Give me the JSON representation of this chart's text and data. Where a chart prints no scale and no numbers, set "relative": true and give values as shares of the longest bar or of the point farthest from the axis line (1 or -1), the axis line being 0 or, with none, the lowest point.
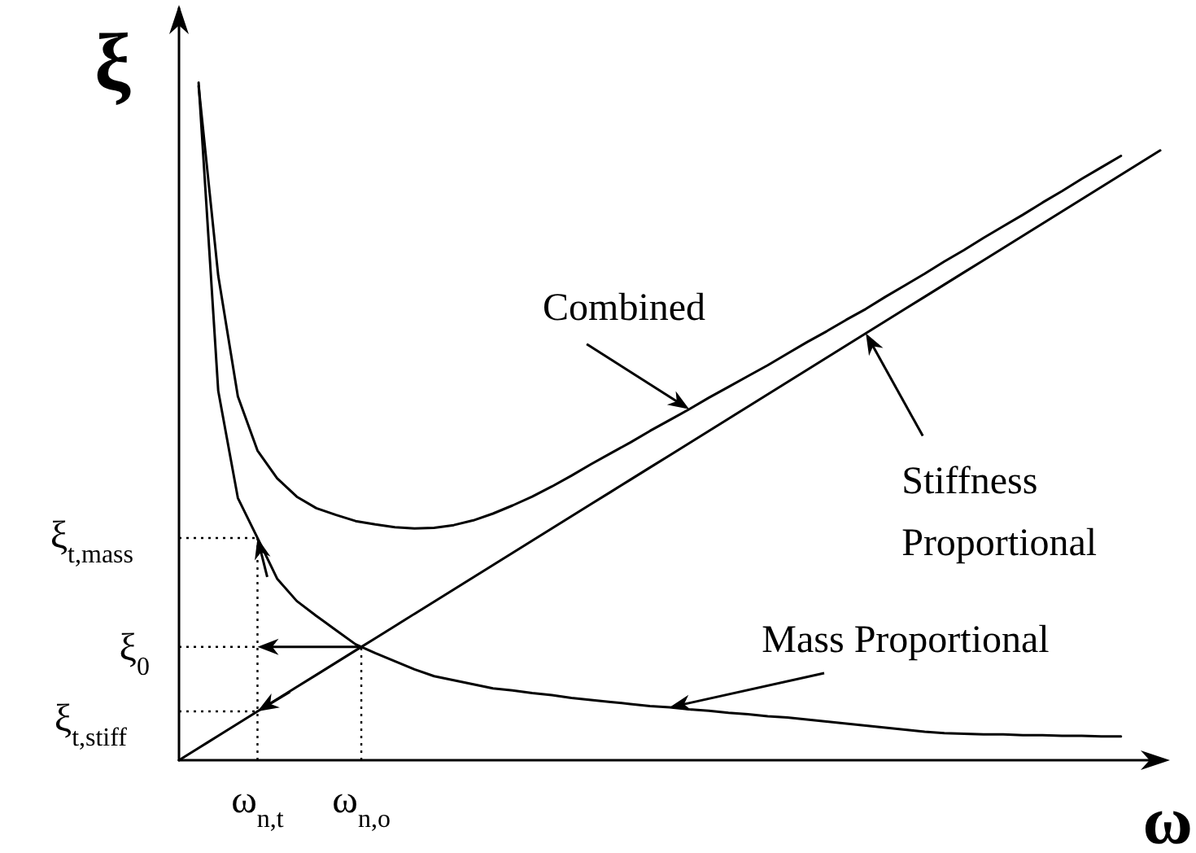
{
  "chart_data": {
    "type": "line",
    "relative": true,
    "xlabel": "ω",
    "ylabel": "ξ",
    "categories": [
      null,
      null,
      null,
      null,
      null,
      null,
      null,
      null,
      null,
      null,
      null,
      null,
      null,
      null,
      null,
      null,
      null,
      null,
      null,
      null,
      null,
      null,
      null,
      null,
      null,
      null,
      null,
      null,
      null,
      null,
      null,
      null,
      null,
      null,
      null,
      null,
      null,
      null,
      null,
      null,
      null,
      null,
      null,
      null,
      null,
      null,
      null,
      null,
      null,
      null,
      null
    ],
    "series": [
      {
        "name": "Mass Proportional",
        "color": "#000000",
        "values": [
          null,
          1.0,
          0.545,
          0.387,
          0.328,
          0.268,
          0.235,
          0.213,
          0.192,
          0.171,
          0.158,
          0.146,
          0.134,
          0.124,
          0.118,
          0.112,
          0.106,
          0.103,
          0.099,
          0.096,
          0.092,
          0.089,
          0.086,
          0.083,
          0.08,
          0.078,
          0.075,
          0.073,
          0.07,
          0.068,
          0.065,
          0.063,
          0.06,
          0.057,
          0.054,
          0.051,
          0.048,
          0.045,
          0.042,
          0.04,
          0.039,
          0.038,
          0.038,
          0.037,
          0.037,
          0.036,
          0.036,
          0.035,
          0.035,
          null,
          null
        ]
      },
      {
        "name": "Combined",
        "color": "#000000",
        "values": [
          null,
          0.995,
          0.715,
          0.537,
          0.457,
          0.416,
          0.389,
          0.372,
          0.362,
          0.353,
          0.348,
          0.344,
          0.342,
          0.343,
          0.347,
          0.354,
          0.364,
          0.376,
          0.389,
          0.404,
          0.42,
          0.437,
          0.453,
          0.469,
          0.486,
          0.502,
          0.518,
          0.535,
          0.551,
          0.567,
          0.583,
          0.6,
          0.617,
          0.633,
          0.65,
          0.666,
          0.684,
          0.701,
          0.718,
          0.736,
          0.753,
          0.771,
          0.788,
          0.805,
          0.823,
          0.84,
          0.858,
          0.875,
          0.892,
          null,
          null
        ]
      },
      {
        "name": "Stiffness Proportional",
        "color": "#000000",
        "values": [
          0,
          0.018,
          0.036,
          0.054,
          0.072,
          0.09,
          0.108,
          0.126,
          0.144,
          0.162,
          0.18,
          0.198,
          0.216,
          0.234,
          0.252,
          0.27,
          0.288,
          0.306,
          0.324,
          0.342,
          0.36,
          0.378,
          0.396,
          0.414,
          0.432,
          0.45,
          0.468,
          0.486,
          0.504,
          0.522,
          0.54,
          0.558,
          0.576,
          0.594,
          0.612,
          0.63,
          0.648,
          0.666,
          0.684,
          0.702,
          0.72,
          0.738,
          0.756,
          0.774,
          0.792,
          0.81,
          0.828,
          0.846,
          0.864,
          0.882,
          0.9
        ]
      }
    ],
    "annotations": [
      "ξ$_{t,mass}$",
      "ξ$_{0}$",
      "ξ$_{t,stiff}$",
      "ω$_{n,t}$",
      "ω$_{n,o}$"
    ],
    "marker": "none",
    "line_style": "solid",
    "grid": false
  }
}
